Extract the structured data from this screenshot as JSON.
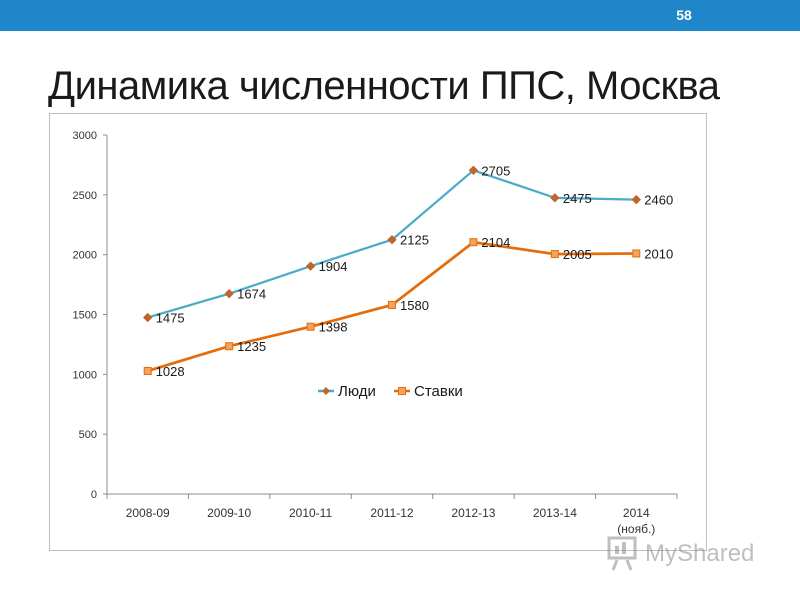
{
  "header": {
    "page_number": "58"
  },
  "slide": {
    "title": "Динамика численности ППС, Москва"
  },
  "chart_data": {
    "type": "line",
    "categories": [
      "2008-09",
      "2009-10",
      "2010-11",
      "2011-12",
      "2012-13",
      "2013-14",
      "2014"
    ],
    "category_sublabels": [
      "",
      "",
      "",
      "",
      "",
      "",
      "(нояб.)"
    ],
    "series": [
      {
        "name": "Люди",
        "values": [
          1475,
          1674,
          1904,
          2125,
          2705,
          2475,
          2460
        ],
        "color": "#4bacc6",
        "marker": "diamond"
      },
      {
        "name": "Ставки",
        "values": [
          1028,
          1235,
          1398,
          1580,
          2104,
          2005,
          2010
        ],
        "color": "#e46c0a",
        "marker": "square"
      }
    ],
    "ylim": [
      0,
      3000
    ],
    "yticks": [
      0,
      500,
      1000,
      1500,
      2000,
      2500,
      3000
    ],
    "grid": false,
    "legend_position": "center"
  },
  "watermark": {
    "text": "MyShared"
  }
}
